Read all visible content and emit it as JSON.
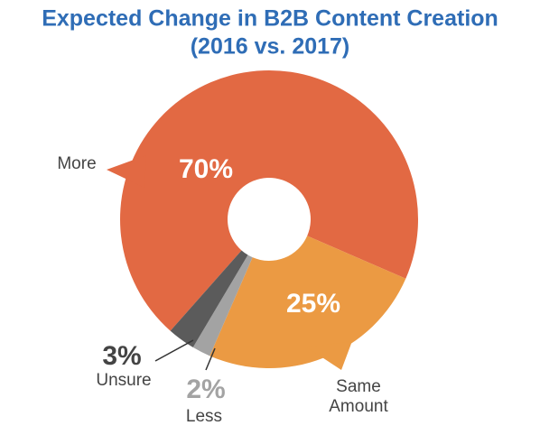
{
  "chart_data": {
    "type": "donut",
    "title": "Expected Change in B2B Content Creation",
    "subtitle": "(2016 vs. 2017)",
    "categories": [
      "More",
      "Same Amount",
      "Less",
      "Unsure"
    ],
    "values": [
      70,
      25,
      2,
      3
    ],
    "value_labels": [
      "70%",
      "25%",
      "2%",
      "3%"
    ],
    "colors": [
      "#e26943",
      "#eb9a43",
      "#a3a3a3",
      "#5b5b5b"
    ]
  }
}
